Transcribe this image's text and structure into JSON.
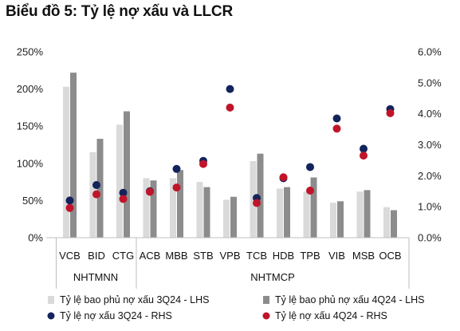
{
  "title": "Biểu đồ 5: Tỷ lệ nợ xấu và LLCR",
  "chart_data": {
    "type": "bar",
    "categories": [
      "VCB",
      "BID",
      "CTG",
      "ACB",
      "MBB",
      "STB",
      "VPB",
      "TCB",
      "HDB",
      "TPB",
      "VIB",
      "MSB",
      "OCB"
    ],
    "groups": [
      {
        "label": "NHTMNN",
        "categories": [
          "VCB",
          "BID",
          "CTG"
        ]
      },
      {
        "label": "NHTMCP",
        "categories": [
          "ACB",
          "MBB",
          "STB",
          "VPB",
          "TCB",
          "HDB",
          "TPB",
          "VIB",
          "MSB",
          "OCB"
        ]
      }
    ],
    "series": [
      {
        "name": "Tỷ lệ bao phủ nợ xấu 3Q24 - LHS",
        "type": "bar",
        "axis": "left",
        "color": "#dadada",
        "values": [
          203,
          115,
          152,
          80,
          80,
          75,
          51,
          103,
          66,
          62,
          47,
          62,
          41
        ]
      },
      {
        "name": "Tỷ lệ bao phủ nợ xấu 4Q24 - LHS",
        "type": "bar",
        "axis": "left",
        "color": "#8c8c8c",
        "values": [
          222,
          133,
          170,
          77,
          91,
          68,
          55,
          113,
          68,
          81,
          49,
          64,
          37
        ]
      },
      {
        "name": "Tỷ lệ nợ xấu 3Q24 - RHS",
        "type": "scatter",
        "axis": "right",
        "color": "#13235b",
        "values": [
          1.2,
          1.7,
          1.45,
          1.5,
          2.22,
          2.48,
          4.8,
          1.28,
          1.92,
          2.28,
          3.85,
          2.87,
          4.15
        ]
      },
      {
        "name": "Tỷ lệ nợ xấu 4Q24 - RHS",
        "type": "scatter",
        "axis": "right",
        "color": "#c0142a",
        "values": [
          0.96,
          1.4,
          1.25,
          1.48,
          1.62,
          2.38,
          4.2,
          1.12,
          1.95,
          1.52,
          3.52,
          2.65,
          4.02
        ]
      }
    ],
    "yleft": {
      "ylim": [
        0,
        250
      ],
      "ticks": [
        "0%",
        "50%",
        "100%",
        "150%",
        "200%",
        "250%"
      ]
    },
    "yright": {
      "ylim": [
        0,
        6
      ],
      "ticks": [
        "0.0%",
        "1.0%",
        "2.0%",
        "3.0%",
        "4.0%",
        "5.0%",
        "6.0%"
      ]
    },
    "grid": false,
    "legend": "bottom"
  }
}
